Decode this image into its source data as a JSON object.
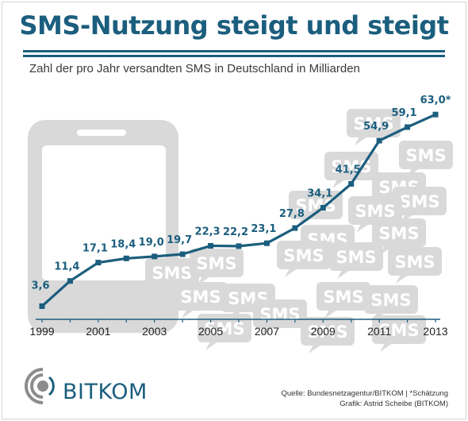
{
  "header": {
    "title": "SMS-Nutzung steigt und steigt",
    "subtitle": "Zahl der pro Jahr versandten SMS in Deutschland in Milliarden"
  },
  "background": {
    "bubble_label": "SMS"
  },
  "chart_data": {
    "type": "line",
    "title": "SMS-Nutzung steigt und steigt",
    "subtitle": "Zahl der pro Jahr versandten SMS in Deutschland in Milliarden",
    "xlabel": "",
    "ylabel": "",
    "x": [
      1999,
      2000,
      2001,
      2002,
      2003,
      2004,
      2005,
      2006,
      2007,
      2008,
      2009,
      2010,
      2011,
      2012,
      2013
    ],
    "values": [
      3.6,
      11.4,
      17.1,
      18.4,
      19.0,
      19.7,
      22.3,
      22.2,
      23.1,
      27.8,
      34.1,
      41.5,
      54.9,
      59.1,
      63.0
    ],
    "value_labels": [
      "3,6",
      "11,4",
      "17,1",
      "18,4",
      "19,0",
      "19,7",
      "22,3",
      "22,2",
      "23,1",
      "27,8",
      "34,1",
      "41,5",
      "54,9",
      "59,1",
      "63,0*"
    ],
    "tick_labels": [
      "1999",
      "2001",
      "2003",
      "2005",
      "2007",
      "2009",
      "2011",
      "2013"
    ],
    "xlim": [
      1999,
      2013
    ],
    "ylim": [
      0,
      66
    ],
    "grid": false,
    "legend": "none",
    "line_color": "#1b5e7e",
    "background_color": "#d9d9d9"
  },
  "footer": {
    "logo_text": "BITKOM",
    "source_line": "Quelle: Bundesnetzagentur/BITKOM | *Schätzung",
    "credit_line": "Grafik: Astrid Scheibe (BITKOM)"
  },
  "colors": {
    "accent": "#1b5e7e",
    "logo_gray": "#8c8c8c",
    "graphic_gray": "#d9d9d9"
  }
}
